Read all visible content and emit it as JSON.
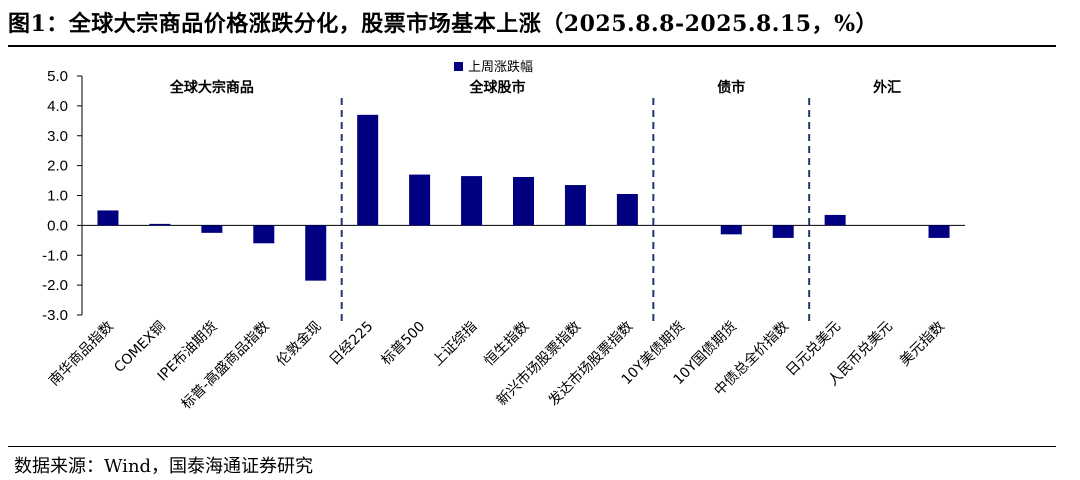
{
  "figure": {
    "title": "图1：全球大宗商品价格涨跌分化，股票市场基本上涨（2025.8.8-2025.8.15，%）",
    "source": "数据来源：Wind，国泰海通证券研究"
  },
  "chart_data": {
    "type": "bar",
    "legend": {
      "label": "上周涨跌幅",
      "position": "top-center"
    },
    "colors": {
      "bar": "#000080",
      "divider": "#1f3a6e"
    },
    "ylim": [
      -3.0,
      5.0
    ],
    "yticks": [
      "5.0",
      "4.0",
      "3.0",
      "2.0",
      "1.0",
      "0.0",
      "-1.0",
      "-2.0",
      "-3.0"
    ],
    "grid": false,
    "categories": [
      "南华商品指数",
      "COMEX铜",
      "IPE布油期货",
      "标普-高盛商品指数",
      "伦敦金现",
      "日经225",
      "标普500",
      "上证综指",
      "恒生指数",
      "新兴市场股票指数",
      "发达市场股票指数",
      "10Y美债期货",
      "10Y国债期货",
      "中债总全价指数",
      "日元兑美元",
      "人民币兑美元",
      "美元指数"
    ],
    "series": [
      {
        "name": "上周涨跌幅",
        "values": [
          0.5,
          0.05,
          -0.25,
          -0.6,
          -1.85,
          3.7,
          1.7,
          1.65,
          1.62,
          1.35,
          1.05,
          0.0,
          -0.3,
          -0.42,
          0.35,
          0.0,
          -0.42
        ]
      }
    ],
    "groups": [
      {
        "label": "全球大宗商品"
      },
      {
        "label": "全球股市"
      },
      {
        "label": "债市"
      },
      {
        "label": "外汇"
      }
    ]
  }
}
